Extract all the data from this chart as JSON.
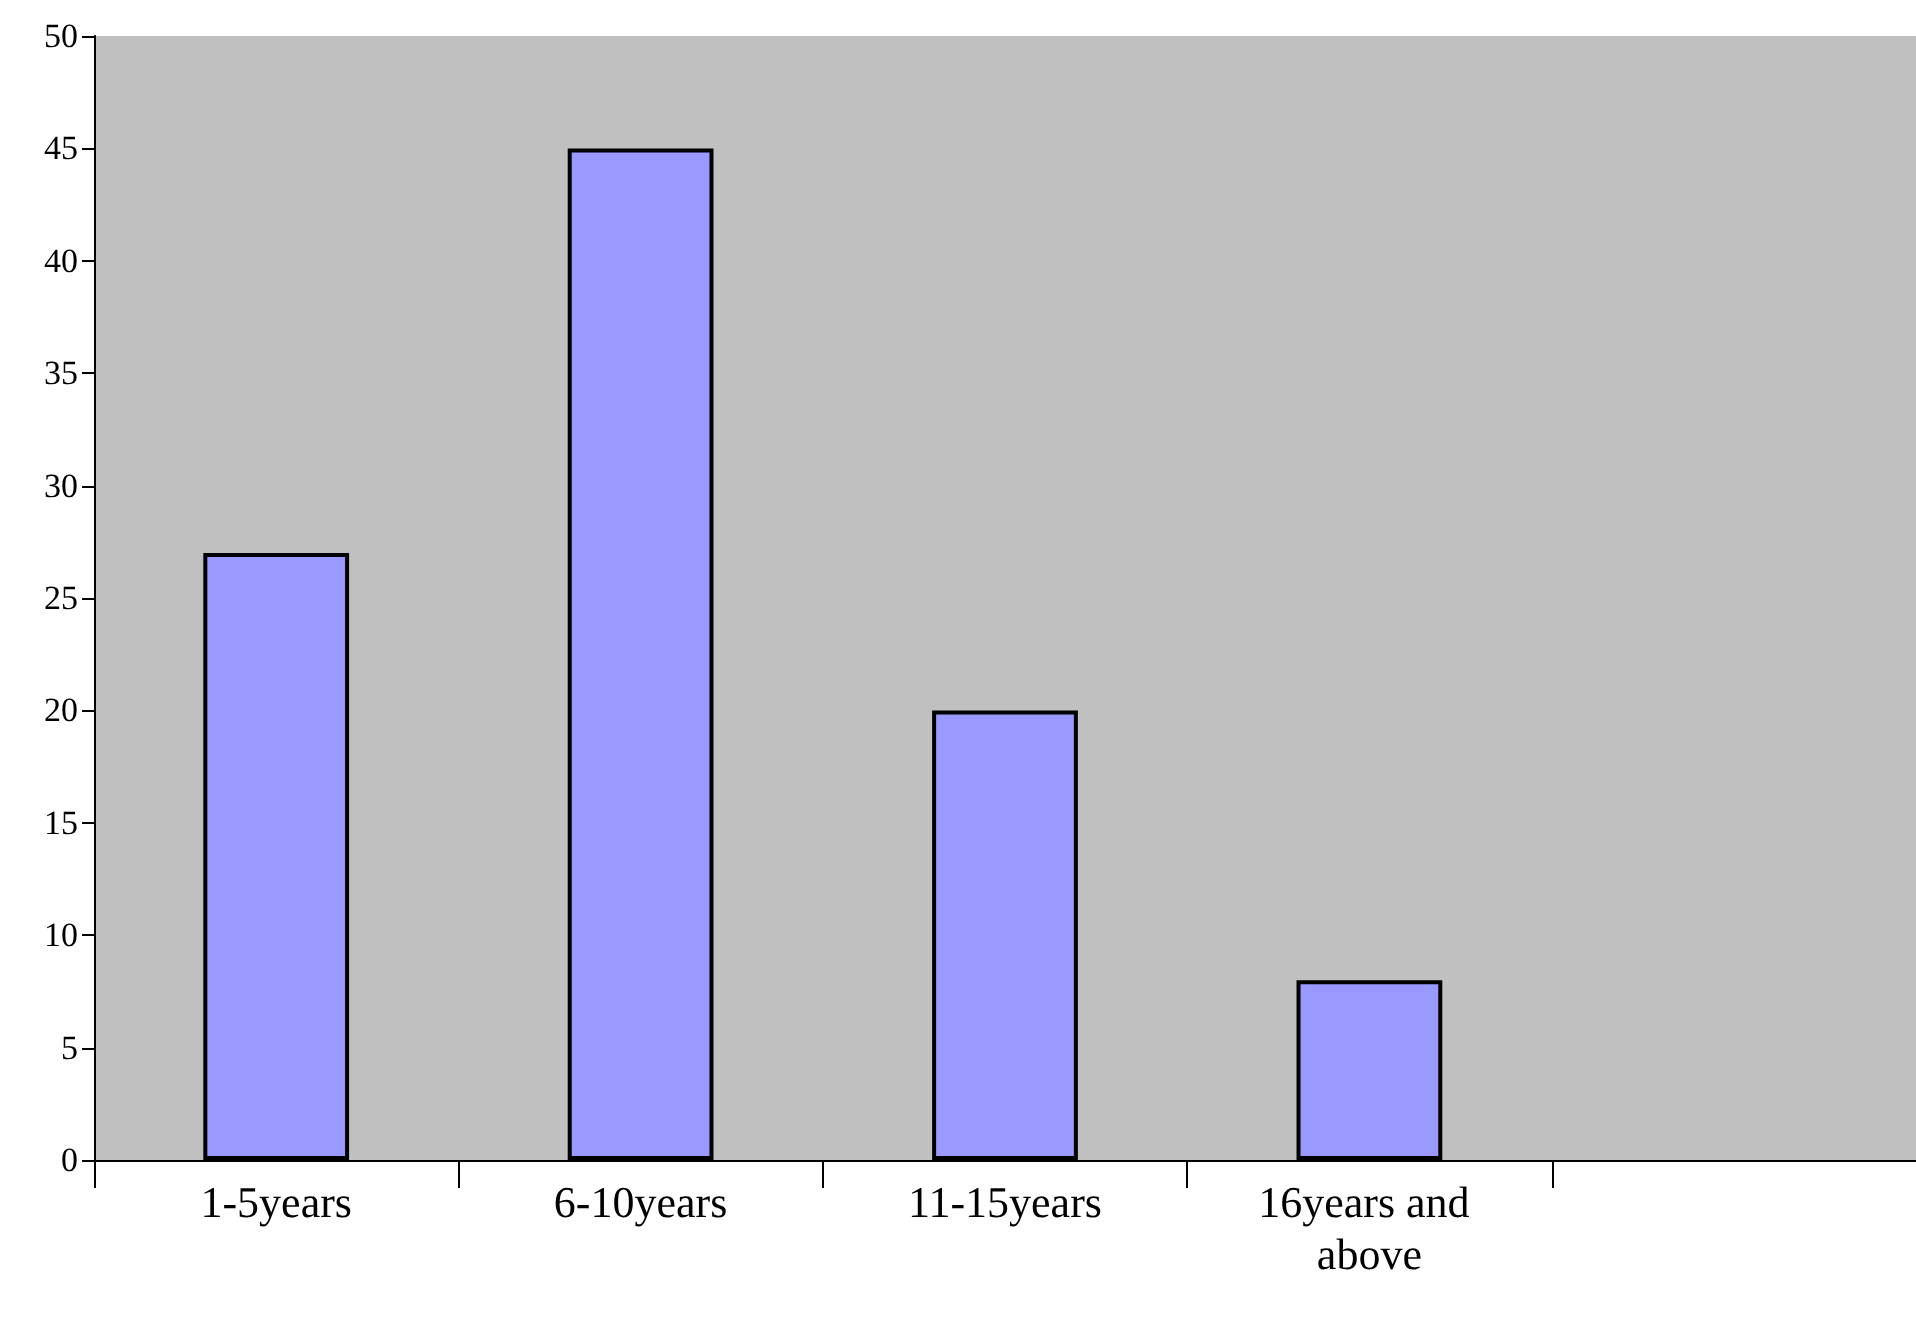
{
  "chart_data": {
    "type": "bar",
    "categories": [
      "1-5years",
      "6-10years",
      "11-15years",
      "16years and above",
      null
    ],
    "values": [
      27,
      45,
      20,
      8,
      null
    ],
    "color": "#9999ff",
    "ylim": [
      0,
      50
    ],
    "yticks": [
      0,
      5,
      10,
      15,
      20,
      25,
      30,
      35,
      40,
      45,
      50
    ],
    "grid": false
  }
}
